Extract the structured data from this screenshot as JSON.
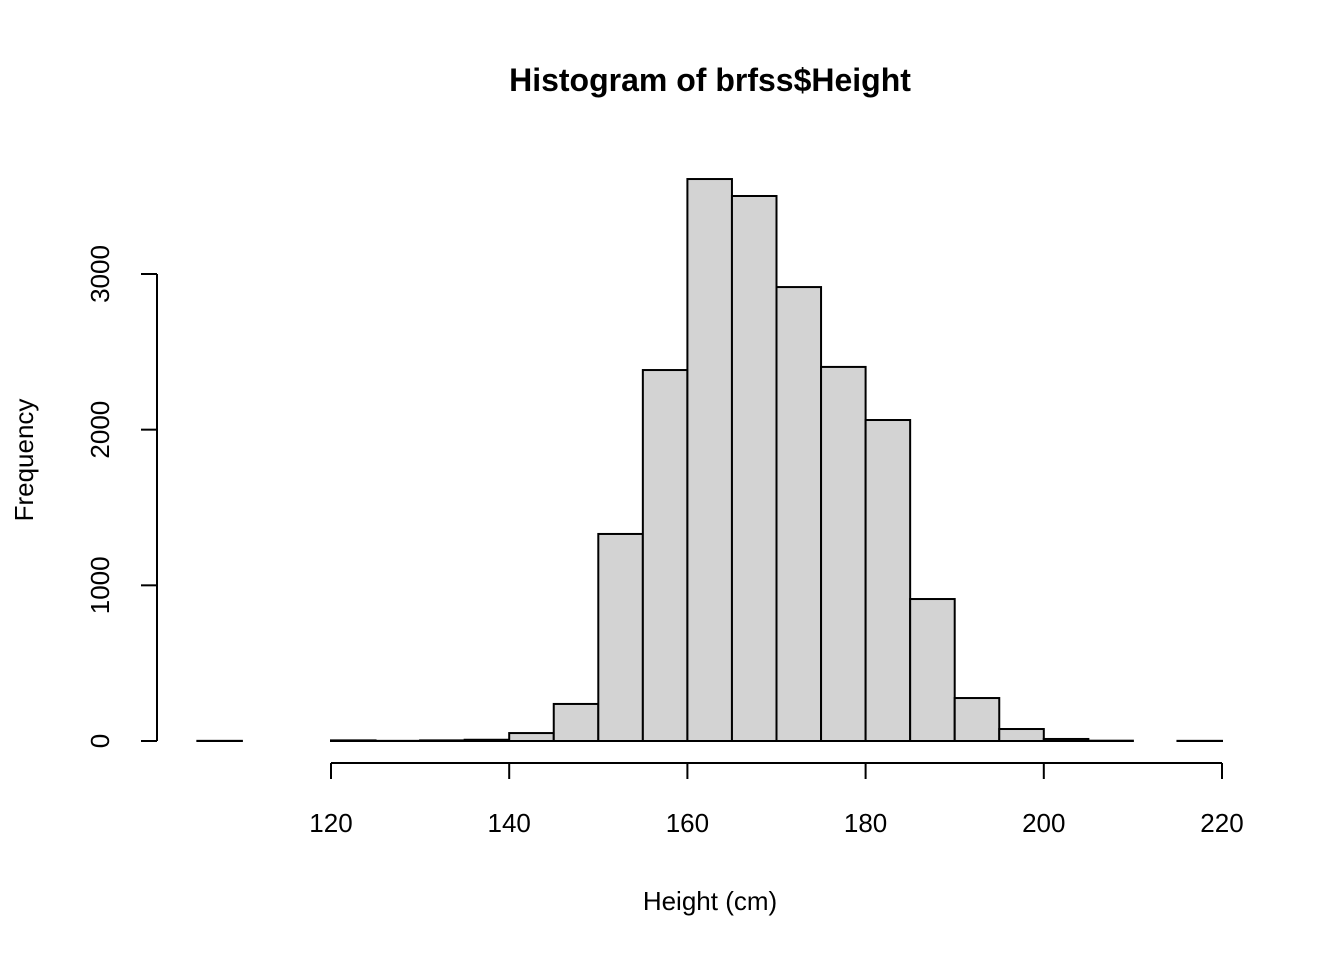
{
  "chart_data": {
    "type": "bar",
    "title": "Histogram of brfss$Height",
    "xlabel": "Height (cm)",
    "ylabel": "Frequency",
    "bin_edges": [
      105,
      110,
      115,
      120,
      125,
      130,
      135,
      140,
      145,
      150,
      155,
      160,
      165,
      170,
      175,
      180,
      185,
      190,
      195,
      200,
      205,
      210,
      215,
      220
    ],
    "values": [
      1,
      0,
      0,
      4,
      1,
      4,
      8,
      51,
      238,
      1330,
      2383,
      3610,
      3501,
      2916,
      2403,
      2062,
      912,
      276,
      77,
      13,
      2,
      0,
      1
    ],
    "xticks": [
      120,
      140,
      160,
      180,
      200,
      220
    ],
    "yticks": [
      0,
      1000,
      2000,
      3000
    ],
    "xlim": [
      120,
      220
    ],
    "ylim": [
      0,
      3000
    ],
    "bar_fill": "#d3d3d3",
    "grid": false
  }
}
